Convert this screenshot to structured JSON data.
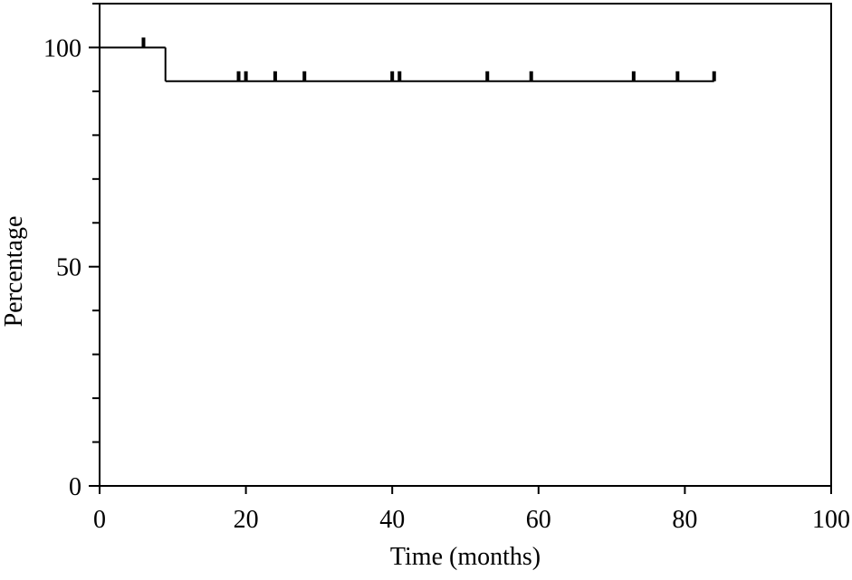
{
  "chart_data": {
    "type": "survival",
    "x_label": "Time (months)",
    "y_label": "Percentage",
    "x": [
      0,
      9,
      84
    ],
    "values": [
      100,
      92.3,
      92.3
    ],
    "censored": {
      "x": [
        6,
        19,
        20,
        24,
        28,
        40,
        41,
        53,
        59,
        73,
        79,
        84
      ],
      "values": [
        100,
        92.3,
        92.3,
        92.3,
        92.3,
        92.3,
        92.3,
        92.3,
        92.3,
        92.3,
        92.3,
        92.3
      ]
    },
    "color": "#000000",
    "xlim": [
      0,
      100
    ],
    "xticks": [
      0,
      20,
      40,
      60,
      80,
      100
    ],
    "ylim": [
      0,
      110
    ],
    "yticks": [
      0,
      50,
      100
    ],
    "y_minor_ticks": [
      10,
      20,
      30,
      40,
      60,
      70,
      80,
      90,
      110
    ]
  }
}
